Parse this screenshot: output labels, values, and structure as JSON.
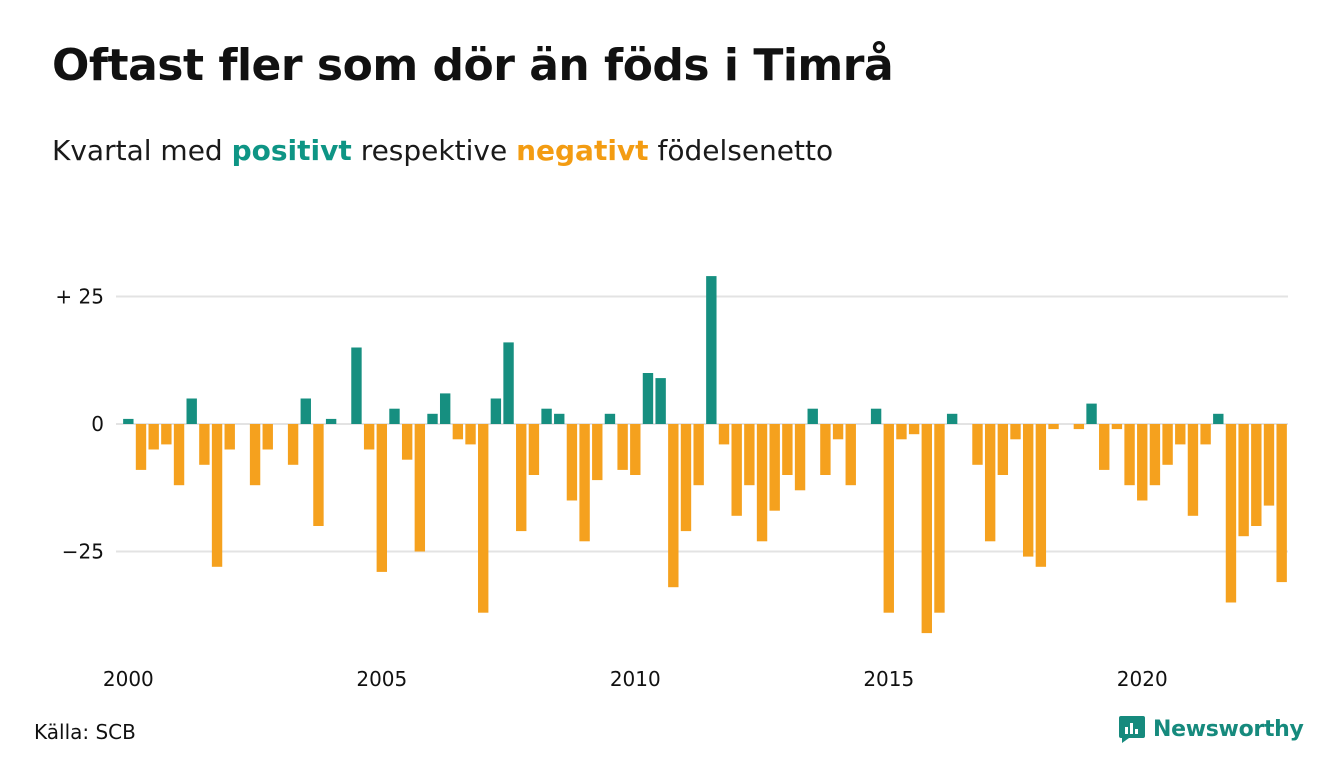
{
  "title": "Oftast fler som dör än föds i Timrå",
  "subtitle": {
    "prefix": "Kvartal med",
    "positive": "positivt",
    "middle": "respektive",
    "negative": "negativt",
    "suffix": "födelsenetto"
  },
  "source": "Källa: SCB",
  "brand": {
    "name": "Newsworthy",
    "icon": "newsworthy-logo-icon"
  },
  "colors": {
    "positive": "#168f80",
    "negative": "#f5a11e",
    "grid": "#e3e3e3",
    "text": "#111111"
  },
  "chart_data": {
    "type": "bar",
    "start_year": 2000,
    "quarters_per_year": 4,
    "x_ticks": [
      2000,
      2005,
      2010,
      2015,
      2020
    ],
    "x_tick_labels": [
      "2000",
      "2005",
      "2010",
      "2015",
      "2020"
    ],
    "y_ticks": [
      25,
      0,
      -25
    ],
    "y_tick_labels": [
      "+ 25",
      "0",
      "−25"
    ],
    "ylim": [
      -44,
      30
    ],
    "grid": true,
    "values": [
      1,
      -9,
      -5,
      -4,
      -12,
      5,
      -8,
      -28,
      -5,
      0,
      -12,
      -5,
      0,
      -8,
      5,
      -20,
      1,
      0,
      15,
      -5,
      -29,
      3,
      -7,
      -25,
      2,
      6,
      -3,
      -4,
      -37,
      5,
      16,
      -21,
      -10,
      3,
      2,
      -15,
      -23,
      -11,
      2,
      -9,
      -10,
      10,
      9,
      -32,
      -21,
      -12,
      29,
      -4,
      -18,
      -12,
      -23,
      -17,
      -10,
      -13,
      3,
      -10,
      -3,
      -12,
      0,
      3,
      -37,
      -3,
      -2,
      -41,
      -37,
      2,
      0,
      -8,
      -23,
      -10,
      -3,
      -26,
      -28,
      -1,
      0,
      -1,
      4,
      -9,
      -1,
      -12,
      -15,
      -12,
      -8,
      -4,
      -18,
      -4,
      2,
      -35,
      -22,
      -20,
      -16,
      -31
    ]
  }
}
